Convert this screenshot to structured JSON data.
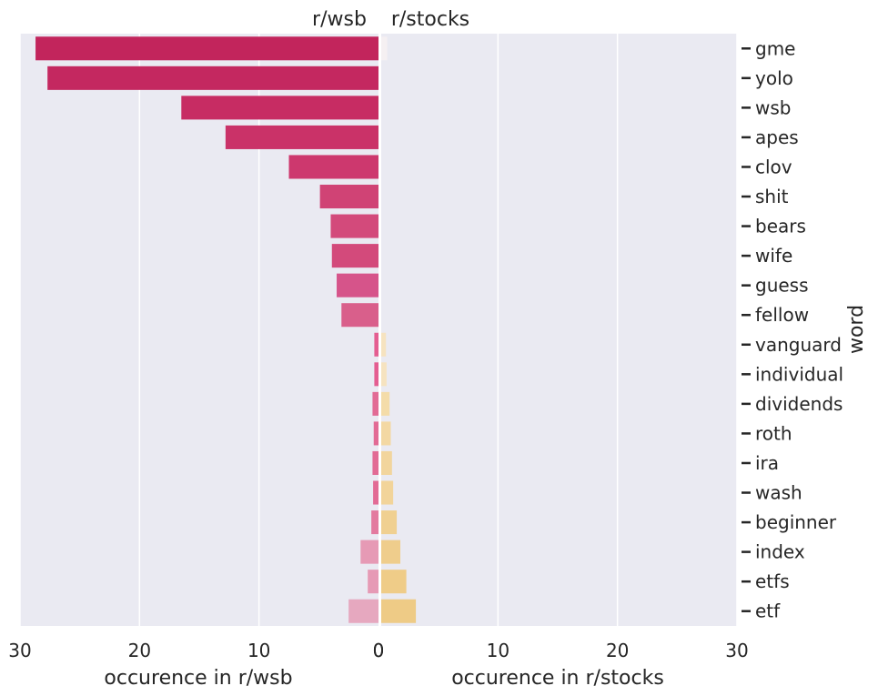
{
  "chart_data": {
    "type": "bar",
    "orientation": "horizontal",
    "titles": {
      "left": "r/wsb",
      "right": "r/stocks"
    },
    "xlabels": {
      "left": "occurence in r/wsb",
      "right": "occurence in r/stocks"
    },
    "ylabel": "word",
    "xlim": [
      0,
      30
    ],
    "xticks": [
      0,
      10,
      20,
      30
    ],
    "grid": true,
    "categories": [
      "gme",
      "yolo",
      "wsb",
      "apes",
      "clov",
      "shit",
      "bears",
      "wife",
      "guess",
      "fellow",
      "vanguard",
      "individual",
      "dividends",
      "roth",
      "ira",
      "wash",
      "beginner",
      "index",
      "etfs",
      "etf"
    ],
    "series": [
      {
        "name": "r/wsb",
        "values": [
          28.7,
          27.7,
          16.5,
          12.8,
          7.5,
          4.9,
          4.0,
          3.9,
          3.5,
          3.1,
          0.35,
          0.35,
          0.5,
          0.4,
          0.5,
          0.45,
          0.6,
          1.5,
          0.9,
          2.5
        ],
        "colors": [
          "#c2255c",
          "#c42860",
          "#c72c63",
          "#ca3268",
          "#cd386e",
          "#d04375",
          "#d34a7b",
          "#d34a7b",
          "#d6548a",
          "#d95f8b",
          "#e45e91",
          "#e45e91",
          "#e26b95",
          "#e26b95",
          "#e26b95",
          "#e26b95",
          "#e37a9f",
          "#e69ab5",
          "#e69ab5",
          "#e6a8bf"
        ]
      },
      {
        "name": "r/stocks",
        "values": [
          0.5,
          0,
          0,
          0,
          0,
          0,
          0,
          0,
          0,
          0,
          0.4,
          0.45,
          0.7,
          0.8,
          0.9,
          1.0,
          1.3,
          1.6,
          2.1,
          2.9
        ],
        "colors": [
          "#f5f0f2",
          "#f4efe8",
          "#f4efe8",
          "#f4efe8",
          "#f4efe8",
          "#f4efe8",
          "#f4efe8",
          "#f4efe8",
          "#f4efe8",
          "#f4efe8",
          "#f6e3c0",
          "#f6e3c0",
          "#f4dca9",
          "#f3d8a3",
          "#f2d59d",
          "#f2d49a",
          "#f0d091",
          "#efcd8c",
          "#efcc88",
          "#eecb86"
        ]
      }
    ]
  }
}
